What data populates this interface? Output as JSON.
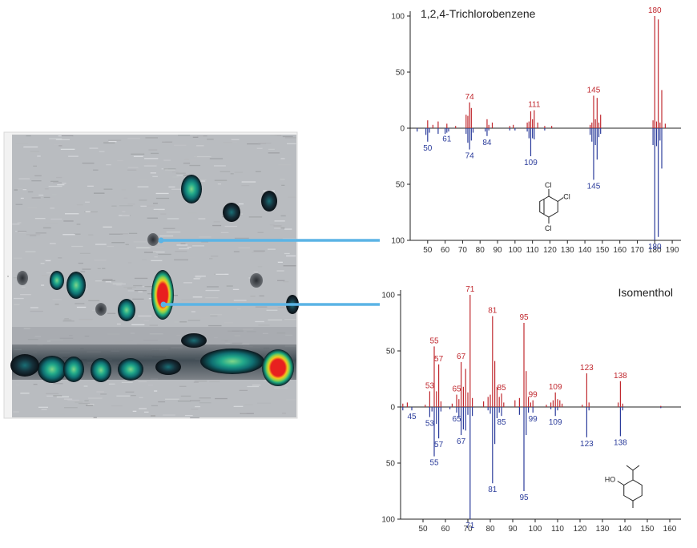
{
  "colors": {
    "ref": "#c0292f",
    "sample": "#2b3c9b",
    "connector": "#5bb4e5",
    "axis": "#222222"
  },
  "chart_data": [
    {
      "type": "heatmap",
      "description_hint": "GCxGC contour plot panel",
      "spots": [
        {
          "x": 0.63,
          "y": 0.21,
          "intensity": "medium"
        },
        {
          "x": 0.78,
          "y": 0.29,
          "intensity": "low"
        },
        {
          "x": 0.9,
          "y": 0.24,
          "intensity": "low"
        },
        {
          "x": 0.51,
          "y": 0.39,
          "intensity": "trace"
        },
        {
          "x": 0.53,
          "y": 0.62,
          "intensity": "high"
        },
        {
          "x": 0.93,
          "y": 0.87,
          "intensity": "high"
        }
      ]
    },
    {
      "type": "bar",
      "title": "1,2,4-Trichlorobenzene",
      "xlim": [
        40,
        195
      ],
      "xticks": [
        50,
        60,
        70,
        80,
        90,
        100,
        110,
        120,
        130,
        140,
        150,
        160,
        170,
        180,
        190
      ],
      "ylim": [
        -100,
        100
      ],
      "yticks": [
        100,
        50,
        0,
        50,
        100
      ],
      "structure_labels": [
        "Cl",
        "Cl",
        "Cl"
      ],
      "series": [
        {
          "values": [
            [
              50,
              7
            ],
            [
              53,
              3
            ],
            [
              56,
              6
            ],
            [
              61,
              4
            ],
            [
              66,
              2
            ],
            [
              72,
              12
            ],
            [
              73,
              11
            ],
            [
              74,
              23
            ],
            [
              75,
              18
            ],
            [
              84,
              8
            ],
            [
              85,
              3
            ],
            [
              87,
              5
            ],
            [
              97,
              2
            ],
            [
              99,
              3
            ],
            [
              107,
              5
            ],
            [
              108,
              6
            ],
            [
              109,
              15
            ],
            [
              110,
              8
            ],
            [
              111,
              16
            ],
            [
              113,
              5
            ],
            [
              117,
              2
            ],
            [
              121,
              2
            ],
            [
              143,
              3
            ],
            [
              144,
              5
            ],
            [
              145,
              29
            ],
            [
              146,
              8
            ],
            [
              147,
              27
            ],
            [
              148,
              5
            ],
            [
              149,
              12
            ],
            [
              179,
              7
            ],
            [
              180,
              100
            ],
            [
              181,
              6
            ],
            [
              182,
              97
            ],
            [
              183,
              5
            ],
            [
              184,
              34
            ],
            [
              186,
              4
            ]
          ]
        },
        {
          "values": [
            [
              44,
              -3
            ],
            [
              49,
              -6
            ],
            [
              50,
              -12
            ],
            [
              51,
              -4
            ],
            [
              56,
              -5
            ],
            [
              60,
              -5
            ],
            [
              61,
              -4
            ],
            [
              62,
              -3
            ],
            [
              72,
              -5
            ],
            [
              73,
              -13
            ],
            [
              74,
              -19
            ],
            [
              75,
              -11
            ],
            [
              76,
              -4
            ],
            [
              83,
              -3
            ],
            [
              84,
              -7
            ],
            [
              85,
              -2
            ],
            [
              97,
              -2
            ],
            [
              100,
              -2
            ],
            [
              107,
              -3
            ],
            [
              108,
              -9
            ],
            [
              109,
              -25
            ],
            [
              110,
              -9
            ],
            [
              111,
              -10
            ],
            [
              117,
              -2
            ],
            [
              143,
              -6
            ],
            [
              144,
              -12
            ],
            [
              145,
              -46
            ],
            [
              146,
              -15
            ],
            [
              147,
              -28
            ],
            [
              148,
              -8
            ],
            [
              149,
              -5
            ],
            [
              179,
              -15
            ],
            [
              180,
              -100
            ],
            [
              181,
              -16
            ],
            [
              182,
              -97
            ],
            [
              183,
              -11
            ],
            [
              184,
              -36
            ]
          ]
        }
      ],
      "peak_labels": [
        {
          "x": 74,
          "series": 0,
          "text": "74"
        },
        {
          "x": 111,
          "series": 0,
          "text": "111"
        },
        {
          "x": 145,
          "series": 0,
          "text": "145"
        },
        {
          "x": 180,
          "series": 0,
          "text": "180"
        },
        {
          "x": 50,
          "series": 1,
          "text": "50"
        },
        {
          "x": 61,
          "series": 1,
          "text": "61"
        },
        {
          "x": 74,
          "series": 1,
          "text": "74"
        },
        {
          "x": 84,
          "series": 1,
          "text": "84"
        },
        {
          "x": 109,
          "series": 1,
          "text": "109"
        },
        {
          "x": 145,
          "series": 1,
          "text": "145"
        },
        {
          "x": 180,
          "series": 1,
          "text": "180"
        }
      ]
    },
    {
      "type": "bar",
      "title": "Isomenthol",
      "xlim": [
        40,
        165
      ],
      "xticks": [
        50,
        60,
        70,
        80,
        90,
        100,
        110,
        120,
        130,
        140,
        150,
        160
      ],
      "ylim": [
        -100,
        100
      ],
      "yticks": [
        100,
        50,
        0,
        50,
        100
      ],
      "structure_labels": [
        "HO"
      ],
      "series": [
        {
          "values": [
            [
              41,
              3
            ],
            [
              43,
              4
            ],
            [
              51,
              2
            ],
            [
              53,
              14
            ],
            [
              55,
              54
            ],
            [
              56,
              14
            ],
            [
              57,
              38
            ],
            [
              58,
              5
            ],
            [
              63,
              3
            ],
            [
              65,
              11
            ],
            [
              66,
              7
            ],
            [
              67,
              40
            ],
            [
              68,
              18
            ],
            [
              69,
              34
            ],
            [
              70,
              13
            ],
            [
              71,
              100
            ],
            [
              72,
              8
            ],
            [
              77,
              5
            ],
            [
              79,
              9
            ],
            [
              80,
              11
            ],
            [
              81,
              81
            ],
            [
              82,
              41
            ],
            [
              83,
              18
            ],
            [
              84,
              9
            ],
            [
              85,
              12
            ],
            [
              86,
              4
            ],
            [
              91,
              6
            ],
            [
              93,
              8
            ],
            [
              95,
              75
            ],
            [
              96,
              32
            ],
            [
              97,
              9
            ],
            [
              98,
              4
            ],
            [
              99,
              6
            ],
            [
              105,
              2
            ],
            [
              107,
              4
            ],
            [
              108,
              6
            ],
            [
              109,
              13
            ],
            [
              110,
              7
            ],
            [
              111,
              6
            ],
            [
              112,
              3
            ],
            [
              121,
              2
            ],
            [
              123,
              30
            ],
            [
              124,
              4
            ],
            [
              137,
              4
            ],
            [
              138,
              23
            ],
            [
              139,
              3
            ],
            [
              156,
              1
            ]
          ]
        },
        {
          "values": [
            [
              41,
              -3
            ],
            [
              45,
              -3
            ],
            [
              53,
              -9
            ],
            [
              54,
              -4
            ],
            [
              55,
              -44
            ],
            [
              56,
              -15
            ],
            [
              57,
              -28
            ],
            [
              58,
              -4
            ],
            [
              62,
              -2
            ],
            [
              65,
              -5
            ],
            [
              66,
              -9
            ],
            [
              67,
              -25
            ],
            [
              68,
              -20
            ],
            [
              69,
              -21
            ],
            [
              70,
              -7
            ],
            [
              71,
              -100
            ],
            [
              72,
              -8
            ],
            [
              79,
              -3
            ],
            [
              80,
              -6
            ],
            [
              81,
              -68
            ],
            [
              82,
              -33
            ],
            [
              83,
              -10
            ],
            [
              84,
              -5
            ],
            [
              85,
              -8
            ],
            [
              93,
              -7
            ],
            [
              95,
              -75
            ],
            [
              96,
              -25
            ],
            [
              97,
              -5
            ],
            [
              99,
              -5
            ],
            [
              107,
              -2
            ],
            [
              109,
              -8
            ],
            [
              110,
              -3
            ],
            [
              123,
              -27
            ],
            [
              124,
              -3
            ],
            [
              138,
              -26
            ],
            [
              139,
              -3
            ],
            [
              156,
              -1
            ]
          ]
        }
      ],
      "peak_labels": [
        {
          "x": 53,
          "series": 0,
          "text": "53"
        },
        {
          "x": 55,
          "series": 0,
          "text": "55"
        },
        {
          "x": 57,
          "series": 0,
          "text": "57"
        },
        {
          "x": 65,
          "series": 0,
          "text": "65"
        },
        {
          "x": 67,
          "series": 0,
          "text": "67"
        },
        {
          "x": 71,
          "series": 0,
          "text": "71"
        },
        {
          "x": 81,
          "series": 0,
          "text": "81"
        },
        {
          "x": 85,
          "series": 0,
          "text": "85"
        },
        {
          "x": 95,
          "series": 0,
          "text": "95"
        },
        {
          "x": 99,
          "series": 0,
          "text": "99"
        },
        {
          "x": 109,
          "series": 0,
          "text": "109"
        },
        {
          "x": 123,
          "series": 0,
          "text": "123"
        },
        {
          "x": 138,
          "series": 0,
          "text": "138"
        },
        {
          "x": 45,
          "series": 1,
          "text": "45"
        },
        {
          "x": 53,
          "series": 1,
          "text": "53"
        },
        {
          "x": 55,
          "series": 1,
          "text": "55"
        },
        {
          "x": 57,
          "series": 1,
          "text": "57"
        },
        {
          "x": 65,
          "series": 1,
          "text": "65"
        },
        {
          "x": 67,
          "series": 1,
          "text": "67"
        },
        {
          "x": 71,
          "series": 1,
          "text": "71"
        },
        {
          "x": 81,
          "series": 1,
          "text": "81"
        },
        {
          "x": 85,
          "series": 1,
          "text": "85"
        },
        {
          "x": 95,
          "series": 1,
          "text": "95"
        },
        {
          "x": 99,
          "series": 1,
          "text": "99"
        },
        {
          "x": 109,
          "series": 1,
          "text": "109"
        },
        {
          "x": 123,
          "series": 1,
          "text": "123"
        },
        {
          "x": 138,
          "series": 1,
          "text": "138"
        }
      ]
    }
  ]
}
